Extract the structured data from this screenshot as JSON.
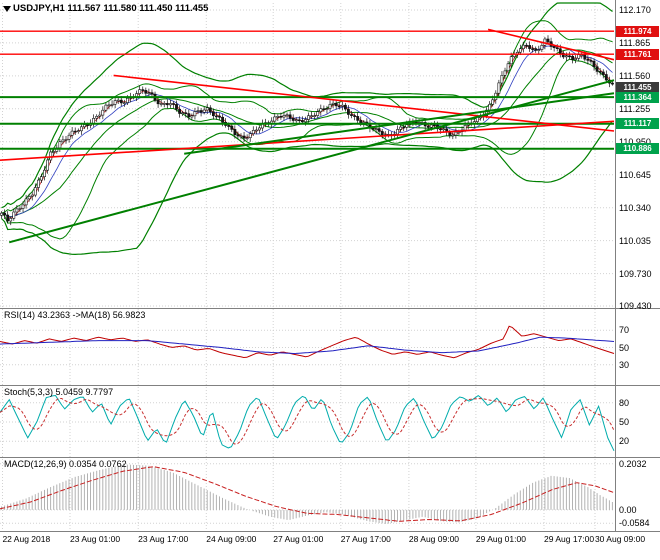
{
  "header": {
    "symbol_info": "USDJPY,H1 111.567 111.580 111.450 111.455"
  },
  "colors": {
    "up_candle": "#FFFFFF",
    "down_candle": "#151515",
    "candle_outline": "#111111",
    "bands": "#008000",
    "fast_ma_red": "#D03030",
    "fast_ma_blue": "#3040C0",
    "rsi": "#C00000",
    "rsi_ma": "#2020C0",
    "stoch_k": "#00ACAC",
    "stoch_d": "#C83030",
    "macd_hist": "#B2B2B2",
    "macd_signal": "#C82020",
    "grid": "#D2D2D2",
    "separator": "#808080",
    "res_line": "#FF0000",
    "sup_line": "#008000",
    "badge_red": "#E01010",
    "badge_green": "#00A24C",
    "badge_current": "#3A3A3A"
  },
  "chart_data": {
    "type": "candlestick",
    "symbol": "USDJPY",
    "timeframe": "H1",
    "open": "111.567",
    "high": "111.580",
    "low": "111.450",
    "close": "111.455",
    "y_axis": {
      "min": 109.43,
      "max": 112.17,
      "ticks": [
        "112.170",
        "111.865",
        "111.560",
        "111.255",
        "110.950",
        "110.645",
        "110.340",
        "110.035",
        "109.730",
        "109.430"
      ]
    },
    "x_axis": {
      "labels": [
        "22 Aug 2018",
        "23 Aug 01:00",
        "23 Aug 17:00",
        "24 Aug 09:00",
        "27 Aug 01:00",
        "27 Aug 17:00",
        "28 Aug 09:00",
        "29 Aug 01:00",
        "29 Aug 17:00",
        "30 Aug 09:00"
      ],
      "positions": [
        0.004,
        0.114,
        0.225,
        0.336,
        0.445,
        0.555,
        0.666,
        0.775,
        0.886,
        0.969
      ]
    },
    "price_path": [
      [
        0.0,
        110.28
      ],
      [
        0.01,
        110.22
      ],
      [
        0.02,
        110.3
      ],
      [
        0.035,
        110.38
      ],
      [
        0.05,
        110.46
      ],
      [
        0.065,
        110.62
      ],
      [
        0.08,
        110.85
      ],
      [
        0.095,
        110.94
      ],
      [
        0.11,
        111.0
      ],
      [
        0.125,
        111.06
      ],
      [
        0.14,
        111.12
      ],
      [
        0.155,
        111.18
      ],
      [
        0.17,
        111.26
      ],
      [
        0.185,
        111.32
      ],
      [
        0.2,
        111.33
      ],
      [
        0.215,
        111.38
      ],
      [
        0.23,
        111.42
      ],
      [
        0.245,
        111.38
      ],
      [
        0.26,
        111.3
      ],
      [
        0.275,
        111.32
      ],
      [
        0.29,
        111.22
      ],
      [
        0.305,
        111.18
      ],
      [
        0.32,
        111.24
      ],
      [
        0.335,
        111.26
      ],
      [
        0.35,
        111.18
      ],
      [
        0.365,
        111.12
      ],
      [
        0.38,
        111.05
      ],
      [
        0.395,
        110.98
      ],
      [
        0.41,
        111.02
      ],
      [
        0.425,
        111.1
      ],
      [
        0.44,
        111.15
      ],
      [
        0.455,
        111.2
      ],
      [
        0.47,
        111.17
      ],
      [
        0.485,
        111.13
      ],
      [
        0.5,
        111.18
      ],
      [
        0.515,
        111.22
      ],
      [
        0.53,
        111.25
      ],
      [
        0.545,
        111.3
      ],
      [
        0.56,
        111.28
      ],
      [
        0.575,
        111.18
      ],
      [
        0.59,
        111.12
      ],
      [
        0.605,
        111.08
      ],
      [
        0.62,
        111.05
      ],
      [
        0.635,
        111.0
      ],
      [
        0.65,
        111.05
      ],
      [
        0.665,
        111.12
      ],
      [
        0.68,
        111.15
      ],
      [
        0.695,
        111.1
      ],
      [
        0.71,
        111.08
      ],
      [
        0.725,
        111.05
      ],
      [
        0.74,
        111.02
      ],
      [
        0.755,
        111.08
      ],
      [
        0.77,
        111.12
      ],
      [
        0.785,
        111.18
      ],
      [
        0.8,
        111.3
      ],
      [
        0.815,
        111.5
      ],
      [
        0.83,
        111.68
      ],
      [
        0.845,
        111.8
      ],
      [
        0.86,
        111.86
      ],
      [
        0.875,
        111.78
      ],
      [
        0.89,
        111.88
      ],
      [
        0.905,
        111.82
      ],
      [
        0.92,
        111.76
      ],
      [
        0.935,
        111.72
      ],
      [
        0.95,
        111.74
      ],
      [
        0.965,
        111.68
      ],
      [
        0.98,
        111.6
      ],
      [
        1.0,
        111.47
      ]
    ],
    "price_levels": [
      {
        "price": 111.974,
        "label": "111.974",
        "kind": "resistance"
      },
      {
        "price": 111.761,
        "label": "111.761",
        "kind": "resistance"
      },
      {
        "price": 111.455,
        "label": "111.455",
        "kind": "current"
      },
      {
        "price": 111.364,
        "label": "111.364",
        "kind": "support"
      },
      {
        "price": 111.117,
        "label": "111.117",
        "kind": "support"
      },
      {
        "price": 110.886,
        "label": "110.886",
        "kind": "support"
      }
    ],
    "trend_lines": [
      {
        "x1": 0.185,
        "p1": 111.565,
        "x2": 1.0,
        "p2": 111.05,
        "kind": "resistance"
      },
      {
        "x1": 0.0,
        "p1": 110.78,
        "x2": 1.0,
        "p2": 111.14,
        "kind": "resistance"
      },
      {
        "x1": 0.795,
        "p1": 111.99,
        "x2": 1.0,
        "p2": 111.71,
        "kind": "resistance"
      },
      {
        "x1": 0.015,
        "p1": 110.02,
        "x2": 1.0,
        "p2": 111.52,
        "kind": "support"
      },
      {
        "x1": 0.3,
        "p1": 110.84,
        "x2": 1.0,
        "p2": 111.4,
        "kind": "support"
      }
    ],
    "indicators": {
      "rsi": {
        "label": "RSI(14) 43.2363 ->MA(18) 56.9823",
        "levels": [
          "70",
          "50",
          "30"
        ],
        "range": [
          10,
          90
        ],
        "line": [
          [
            0,
            57
          ],
          [
            0.02,
            54
          ],
          [
            0.04,
            58
          ],
          [
            0.06,
            55
          ],
          [
            0.08,
            60
          ],
          [
            0.1,
            57
          ],
          [
            0.12,
            61
          ],
          [
            0.14,
            58
          ],
          [
            0.16,
            62
          ],
          [
            0.18,
            59
          ],
          [
            0.2,
            61
          ],
          [
            0.22,
            57
          ],
          [
            0.24,
            59
          ],
          [
            0.26,
            54
          ],
          [
            0.28,
            50
          ],
          [
            0.3,
            52
          ],
          [
            0.32,
            47
          ],
          [
            0.34,
            49
          ],
          [
            0.36,
            44
          ],
          [
            0.38,
            41
          ],
          [
            0.4,
            38
          ],
          [
            0.42,
            44
          ],
          [
            0.44,
            41
          ],
          [
            0.46,
            45
          ],
          [
            0.48,
            42
          ],
          [
            0.5,
            39
          ],
          [
            0.52,
            46
          ],
          [
            0.54,
            52
          ],
          [
            0.56,
            58
          ],
          [
            0.58,
            62
          ],
          [
            0.6,
            54
          ],
          [
            0.62,
            47
          ],
          [
            0.64,
            42
          ],
          [
            0.66,
            45
          ],
          [
            0.68,
            42
          ],
          [
            0.7,
            45
          ],
          [
            0.72,
            41
          ],
          [
            0.74,
            38
          ],
          [
            0.76,
            44
          ],
          [
            0.78,
            48
          ],
          [
            0.8,
            55
          ],
          [
            0.82,
            60
          ],
          [
            0.83,
            76
          ],
          [
            0.85,
            63
          ],
          [
            0.87,
            66
          ],
          [
            0.89,
            62
          ],
          [
            0.91,
            58
          ],
          [
            0.93,
            60
          ],
          [
            0.95,
            55
          ],
          [
            0.97,
            50
          ],
          [
            1.0,
            43
          ]
        ],
        "ma": [
          [
            0,
            54
          ],
          [
            0.08,
            56
          ],
          [
            0.16,
            58
          ],
          [
            0.24,
            58
          ],
          [
            0.3,
            54
          ],
          [
            0.36,
            50
          ],
          [
            0.42,
            45
          ],
          [
            0.48,
            43
          ],
          [
            0.54,
            46
          ],
          [
            0.6,
            52
          ],
          [
            0.66,
            47
          ],
          [
            0.72,
            44
          ],
          [
            0.78,
            46
          ],
          [
            0.84,
            55
          ],
          [
            0.88,
            62
          ],
          [
            0.92,
            61
          ],
          [
            0.96,
            59
          ],
          [
            1.0,
            57
          ]
        ]
      },
      "stoch": {
        "label": "Stoch(5,3,3) 5.0459 9.7797",
        "levels": [
          "80",
          "50",
          "20"
        ],
        "range": [
          0,
          100
        ],
        "k": [
          [
            0.0,
            65
          ],
          [
            0.015,
            85
          ],
          [
            0.03,
            55
          ],
          [
            0.045,
            25
          ],
          [
            0.06,
            50
          ],
          [
            0.075,
            88
          ],
          [
            0.09,
            92
          ],
          [
            0.105,
            70
          ],
          [
            0.12,
            85
          ],
          [
            0.135,
            90
          ],
          [
            0.15,
            65
          ],
          [
            0.165,
            80
          ],
          [
            0.18,
            45
          ],
          [
            0.195,
            75
          ],
          [
            0.21,
            88
          ],
          [
            0.225,
            55
          ],
          [
            0.24,
            20
          ],
          [
            0.255,
            40
          ],
          [
            0.27,
            15
          ],
          [
            0.285,
            55
          ],
          [
            0.3,
            85
          ],
          [
            0.315,
            60
          ],
          [
            0.33,
            25
          ],
          [
            0.345,
            70
          ],
          [
            0.36,
            15
          ],
          [
            0.375,
            8
          ],
          [
            0.39,
            35
          ],
          [
            0.405,
            75
          ],
          [
            0.42,
            90
          ],
          [
            0.435,
            55
          ],
          [
            0.45,
            22
          ],
          [
            0.465,
            45
          ],
          [
            0.48,
            80
          ],
          [
            0.495,
            92
          ],
          [
            0.51,
            68
          ],
          [
            0.525,
            88
          ],
          [
            0.54,
            45
          ],
          [
            0.555,
            15
          ],
          [
            0.57,
            35
          ],
          [
            0.585,
            78
          ],
          [
            0.6,
            90
          ],
          [
            0.615,
            50
          ],
          [
            0.63,
            18
          ],
          [
            0.645,
            38
          ],
          [
            0.66,
            75
          ],
          [
            0.675,
            88
          ],
          [
            0.69,
            52
          ],
          [
            0.705,
            22
          ],
          [
            0.72,
            42
          ],
          [
            0.735,
            78
          ],
          [
            0.75,
            90
          ],
          [
            0.765,
            82
          ],
          [
            0.78,
            92
          ],
          [
            0.795,
            75
          ],
          [
            0.81,
            88
          ],
          [
            0.825,
            65
          ],
          [
            0.84,
            85
          ],
          [
            0.855,
            90
          ],
          [
            0.87,
            70
          ],
          [
            0.885,
            88
          ],
          [
            0.9,
            55
          ],
          [
            0.915,
            25
          ],
          [
            0.93,
            70
          ],
          [
            0.945,
            85
          ],
          [
            0.96,
            45
          ],
          [
            0.975,
            75
          ],
          [
            0.99,
            25
          ],
          [
            1.0,
            5
          ]
        ]
      },
      "macd": {
        "label": "MACD(12,26,9) 0.0354 0.0762",
        "levels": [
          "0.2032",
          "0.00",
          "-0.0584"
        ],
        "level_values": [
          0.2032,
          0,
          -0.0584
        ],
        "range": [
          -0.075,
          0.215
        ],
        "main": [
          [
            0,
            0.015
          ],
          [
            0.04,
            0.05
          ],
          [
            0.08,
            0.1
          ],
          [
            0.12,
            0.145
          ],
          [
            0.16,
            0.175
          ],
          [
            0.2,
            0.2
          ],
          [
            0.24,
            0.195
          ],
          [
            0.28,
            0.165
          ],
          [
            0.32,
            0.11
          ],
          [
            0.36,
            0.055
          ],
          [
            0.4,
            0.005
          ],
          [
            0.44,
            -0.03
          ],
          [
            0.47,
            -0.045
          ],
          [
            0.5,
            -0.025
          ],
          [
            0.53,
            -0.01
          ],
          [
            0.56,
            -0.02
          ],
          [
            0.6,
            -0.05
          ],
          [
            0.63,
            -0.062
          ],
          [
            0.66,
            -0.045
          ],
          [
            0.69,
            -0.03
          ],
          [
            0.72,
            -0.05
          ],
          [
            0.75,
            -0.055
          ],
          [
            0.78,
            -0.035
          ],
          [
            0.81,
            0.01
          ],
          [
            0.84,
            0.07
          ],
          [
            0.87,
            0.12
          ],
          [
            0.9,
            0.15
          ],
          [
            0.93,
            0.14
          ],
          [
            0.96,
            0.1
          ],
          [
            0.98,
            0.065
          ],
          [
            1.0,
            0.035
          ]
        ],
        "signal": [
          [
            0,
            0.005
          ],
          [
            0.05,
            0.035
          ],
          [
            0.1,
            0.085
          ],
          [
            0.15,
            0.13
          ],
          [
            0.2,
            0.17
          ],
          [
            0.25,
            0.19
          ],
          [
            0.3,
            0.165
          ],
          [
            0.35,
            0.115
          ],
          [
            0.4,
            0.06
          ],
          [
            0.45,
            0.015
          ],
          [
            0.5,
            -0.015
          ],
          [
            0.55,
            -0.02
          ],
          [
            0.6,
            -0.035
          ],
          [
            0.65,
            -0.05
          ],
          [
            0.7,
            -0.042
          ],
          [
            0.75,
            -0.048
          ],
          [
            0.8,
            -0.02
          ],
          [
            0.85,
            0.03
          ],
          [
            0.9,
            0.09
          ],
          [
            0.94,
            0.12
          ],
          [
            0.97,
            0.105
          ],
          [
            1.0,
            0.076
          ]
        ]
      }
    }
  }
}
